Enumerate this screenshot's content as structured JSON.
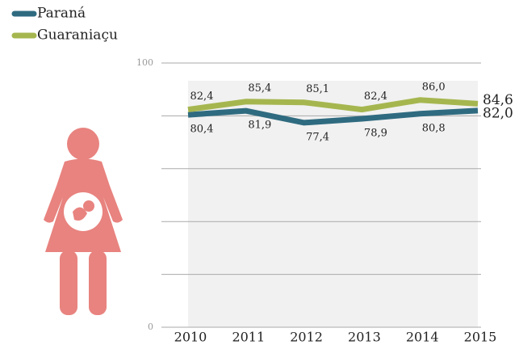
{
  "chart_data": {
    "type": "line",
    "categories": [
      "2010",
      "2011",
      "2012",
      "2013",
      "2014",
      "2015"
    ],
    "series": [
      {
        "name": "Paraná",
        "color": "#2f6b80",
        "values": [
          80.4,
          81.9,
          77.4,
          78.9,
          80.8,
          82.0
        ],
        "value_labels": [
          "80,4",
          "81,9",
          "77,4",
          "78,9",
          "80,8",
          "82,0"
        ],
        "label_position": "below"
      },
      {
        "name": "Guaraniaçu",
        "color": "#a6b64f",
        "values": [
          82.4,
          85.4,
          85.1,
          82.4,
          86.0,
          84.6
        ],
        "value_labels": [
          "82,4",
          "85,4",
          "85,1",
          "82,4",
          "86,0",
          "84,6"
        ],
        "label_position": "above"
      }
    ],
    "ylim": [
      0,
      100
    ],
    "yticks": [
      0,
      100
    ],
    "minor_yticks": [
      20,
      40,
      60,
      80
    ],
    "grid": true,
    "legend": "top-left"
  }
}
